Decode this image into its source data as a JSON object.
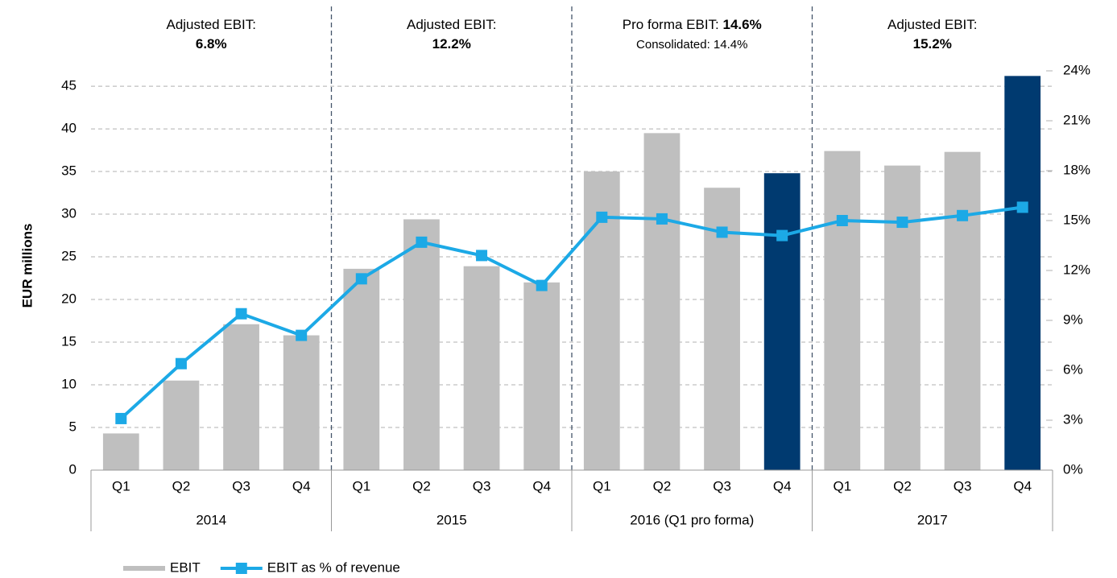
{
  "chart_data": {
    "type": "bar_line",
    "y_label": "EUR millions",
    "categories": [
      "Q1",
      "Q2",
      "Q3",
      "Q4",
      "Q1",
      "Q2",
      "Q3",
      "Q4",
      "Q1",
      "Q2",
      "Q3",
      "Q4",
      "Q1",
      "Q2",
      "Q3",
      "Q4"
    ],
    "groups": [
      "2014",
      "2015",
      "2016 (Q1 pro forma)",
      "2017"
    ],
    "annotations": [
      {
        "lines": [
          [
            {
              "text": "Adjusted EBIT:"
            }
          ],
          [
            {
              "text": "6.8%",
              "bold": true
            }
          ]
        ]
      },
      {
        "lines": [
          [
            {
              "text": "Adjusted EBIT:"
            }
          ],
          [
            {
              "text": "12.2%",
              "bold": true
            }
          ]
        ]
      },
      {
        "lines": [
          [
            {
              "text": "Pro forma EBIT: "
            },
            {
              "text": "14.6%",
              "bold": true
            }
          ],
          [
            {
              "text": "Consolidated: 14.4%",
              "small": true
            }
          ]
        ]
      },
      {
        "lines": [
          [
            {
              "text": "Adjusted EBIT:"
            }
          ],
          [
            {
              "text": "15.2%",
              "bold": true
            }
          ]
        ]
      }
    ],
    "series": [
      {
        "name": "EBIT",
        "kind": "bar",
        "color": "#bfbfbf",
        "colors": [
          "#bfbfbf",
          "#bfbfbf",
          "#bfbfbf",
          "#bfbfbf",
          "#bfbfbf",
          "#bfbfbf",
          "#bfbfbf",
          "#bfbfbf",
          "#bfbfbf",
          "#bfbfbf",
          "#bfbfbf",
          "#003a70",
          "#bfbfbf",
          "#bfbfbf",
          "#bfbfbf",
          "#003a70"
        ],
        "values": [
          4.3,
          10.5,
          17.1,
          15.8,
          23.6,
          29.4,
          23.9,
          22.0,
          35.0,
          39.5,
          33.1,
          34.8,
          37.4,
          35.7,
          37.3,
          46.2
        ]
      },
      {
        "name": "EBIT as % of revenue",
        "kind": "line",
        "axis": "y2",
        "color": "#1ca9e6",
        "values": [
          3.1,
          6.4,
          9.4,
          8.1,
          11.5,
          13.7,
          12.9,
          11.1,
          15.2,
          15.1,
          14.3,
          14.1,
          15.0,
          14.9,
          15.3,
          15.8
        ]
      }
    ],
    "ylim": [
      0,
      46.8
    ],
    "yticks": [
      0,
      5,
      10,
      15,
      20,
      25,
      30,
      35,
      40,
      45
    ],
    "y2lim": [
      0,
      24
    ],
    "y2ticks": [
      {
        "value": 0,
        "label": "0%"
      },
      {
        "value": 3,
        "label": "3%"
      },
      {
        "value": 6,
        "label": "6%"
      },
      {
        "value": 9,
        "label": "9%"
      },
      {
        "value": 12,
        "label": "12%"
      },
      {
        "value": 15,
        "label": "15%"
      },
      {
        "value": 18,
        "label": "18%"
      },
      {
        "value": 21,
        "label": "21%"
      },
      {
        "value": 24,
        "label": "24%"
      }
    ],
    "grid": true
  }
}
